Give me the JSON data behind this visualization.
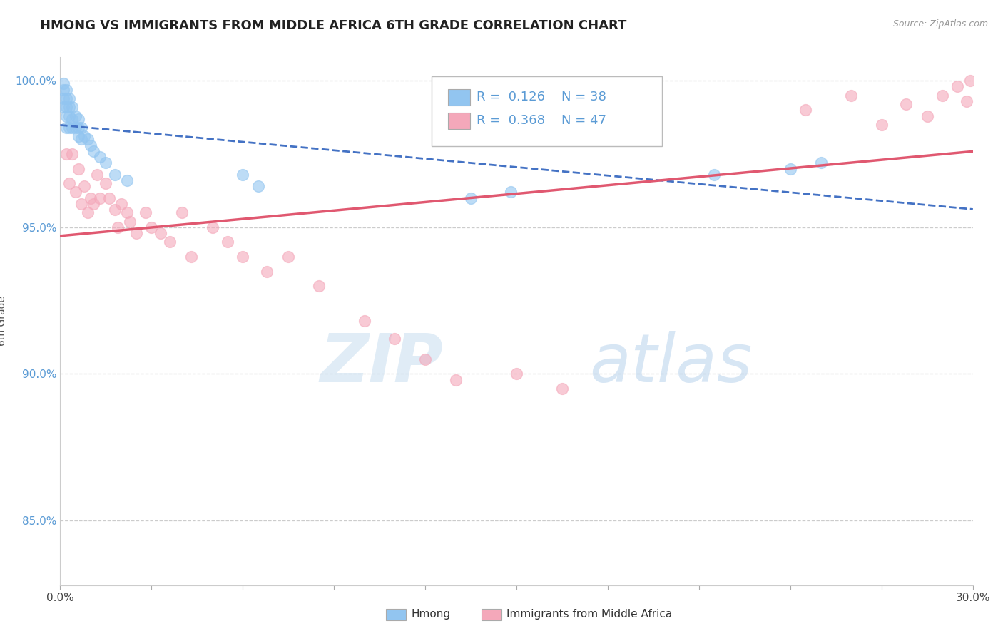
{
  "title": "HMONG VS IMMIGRANTS FROM MIDDLE AFRICA 6TH GRADE CORRELATION CHART",
  "source": "Source: ZipAtlas.com",
  "ylabel": "6th Grade",
  "xlim": [
    0.0,
    0.3
  ],
  "ylim": [
    0.828,
    1.008
  ],
  "xtick_positions": [
    0.0,
    0.03,
    0.06,
    0.09,
    0.12,
    0.15,
    0.18,
    0.21,
    0.24,
    0.27,
    0.3
  ],
  "xtick_labels_show": {
    "0.0": "0.0%",
    "0.30": "30.0%"
  },
  "ytick_positions": [
    0.85,
    0.9,
    0.95,
    1.0
  ],
  "ytick_labels": [
    "85.0%",
    "90.0%",
    "95.0%",
    "100.0%"
  ],
  "hmong_R": 0.126,
  "hmong_N": 38,
  "africa_R": 0.368,
  "africa_N": 47,
  "hmong_color": "#92C5F0",
  "africa_color": "#F4A8BA",
  "hmong_line_color": "#4472C4",
  "africa_line_color": "#E05870",
  "watermark_text": "ZIP",
  "watermark_text2": "atlas",
  "title_fontsize": 13,
  "axis_label_fontsize": 10,
  "tick_fontsize": 11,
  "legend_fontsize": 13,
  "hmong_x": [
    0.001,
    0.001,
    0.001,
    0.001,
    0.002,
    0.002,
    0.002,
    0.002,
    0.002,
    0.003,
    0.003,
    0.003,
    0.003,
    0.004,
    0.004,
    0.004,
    0.005,
    0.005,
    0.006,
    0.006,
    0.006,
    0.007,
    0.007,
    0.008,
    0.009,
    0.01,
    0.011,
    0.013,
    0.015,
    0.018,
    0.022,
    0.06,
    0.065,
    0.135,
    0.148,
    0.215,
    0.24,
    0.25
  ],
  "hmong_y": [
    0.999,
    0.997,
    0.994,
    0.991,
    0.997,
    0.994,
    0.991,
    0.988,
    0.984,
    0.994,
    0.991,
    0.988,
    0.984,
    0.991,
    0.987,
    0.984,
    0.988,
    0.984,
    0.987,
    0.984,
    0.981,
    0.984,
    0.98,
    0.981,
    0.98,
    0.978,
    0.976,
    0.974,
    0.972,
    0.968,
    0.966,
    0.968,
    0.964,
    0.96,
    0.962,
    0.968,
    0.97,
    0.972
  ],
  "africa_x": [
    0.002,
    0.003,
    0.004,
    0.005,
    0.006,
    0.007,
    0.008,
    0.009,
    0.01,
    0.011,
    0.012,
    0.013,
    0.015,
    0.016,
    0.018,
    0.019,
    0.02,
    0.022,
    0.023,
    0.025,
    0.028,
    0.03,
    0.033,
    0.036,
    0.04,
    0.043,
    0.05,
    0.055,
    0.06,
    0.068,
    0.075,
    0.085,
    0.1,
    0.11,
    0.12,
    0.13,
    0.15,
    0.165,
    0.245,
    0.26,
    0.27,
    0.278,
    0.285,
    0.29,
    0.295,
    0.298,
    0.299
  ],
  "africa_y": [
    0.975,
    0.965,
    0.975,
    0.962,
    0.97,
    0.958,
    0.964,
    0.955,
    0.96,
    0.958,
    0.968,
    0.96,
    0.965,
    0.96,
    0.956,
    0.95,
    0.958,
    0.955,
    0.952,
    0.948,
    0.955,
    0.95,
    0.948,
    0.945,
    0.955,
    0.94,
    0.95,
    0.945,
    0.94,
    0.935,
    0.94,
    0.93,
    0.918,
    0.912,
    0.905,
    0.898,
    0.9,
    0.895,
    0.99,
    0.995,
    0.985,
    0.992,
    0.988,
    0.995,
    0.998,
    0.993,
    1.0
  ]
}
